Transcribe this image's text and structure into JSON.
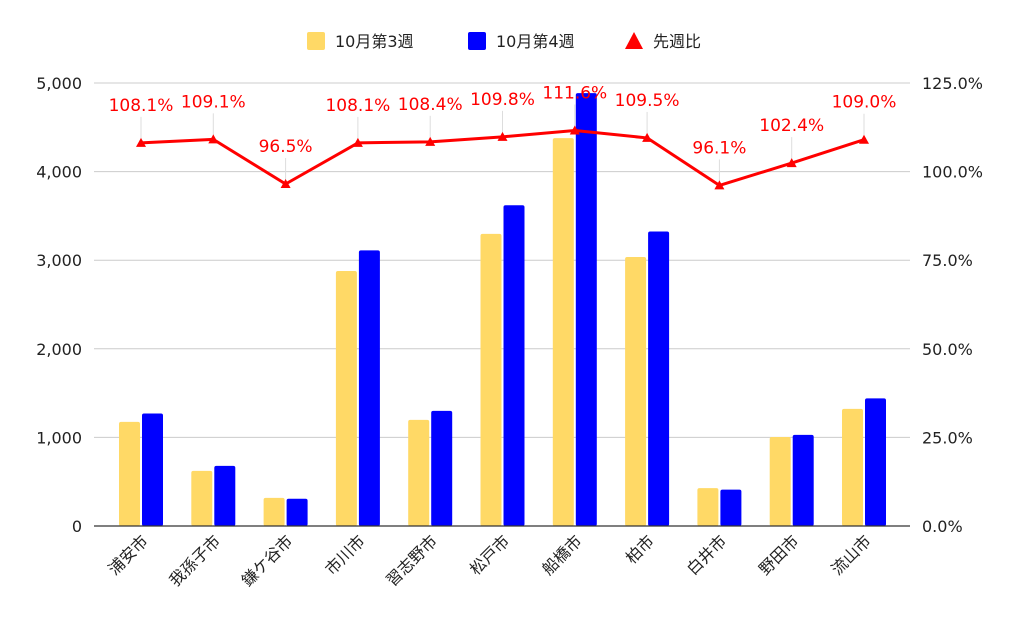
{
  "chart_data": {
    "type": "bar+line",
    "categories": [
      "浦安市",
      "我孫子市",
      "鎌ケ谷市",
      "市川市",
      "習志野市",
      "松戸市",
      "船橋市",
      "柏市",
      "白井市",
      "野田市",
      "流山市"
    ],
    "series": [
      {
        "name": "10月第3週",
        "type": "bar",
        "axis": "left",
        "color": "#FFD966",
        "values": [
          1175,
          622,
          318,
          2878,
          1198,
          3297,
          4378,
          3036,
          428,
          1004,
          1322
        ]
      },
      {
        "name": "10月第4週",
        "type": "bar",
        "axis": "left",
        "color": "#0000FF",
        "values": [
          1270,
          679,
          307,
          3111,
          1299,
          3620,
          4886,
          3324,
          411,
          1028,
          1441
        ]
      },
      {
        "name": "先週比",
        "type": "line",
        "axis": "right",
        "color": "#FF0000",
        "marker": "triangle",
        "values": [
          108.1,
          109.1,
          96.5,
          108.1,
          108.4,
          109.8,
          111.6,
          109.5,
          96.1,
          102.4,
          109.0
        ],
        "labels": [
          "108.1%",
          "109.1%",
          "96.5%",
          "108.1%",
          "108.4%",
          "109.8%",
          "111.6%",
          "109.5%",
          "96.1%",
          "102.4%",
          "109.0%"
        ]
      }
    ],
    "left_axis": {
      "ylim": [
        0,
        5000
      ],
      "ticks": [
        "0",
        "1,000",
        "2,000",
        "3,000",
        "4,000",
        "5,000"
      ]
    },
    "right_axis": {
      "ylim": [
        0,
        125
      ],
      "ticks": [
        "0.0%",
        "25.0%",
        "50.0%",
        "75.0%",
        "100.0%",
        "125.0%"
      ]
    },
    "grid": true,
    "legend_position": "top"
  }
}
